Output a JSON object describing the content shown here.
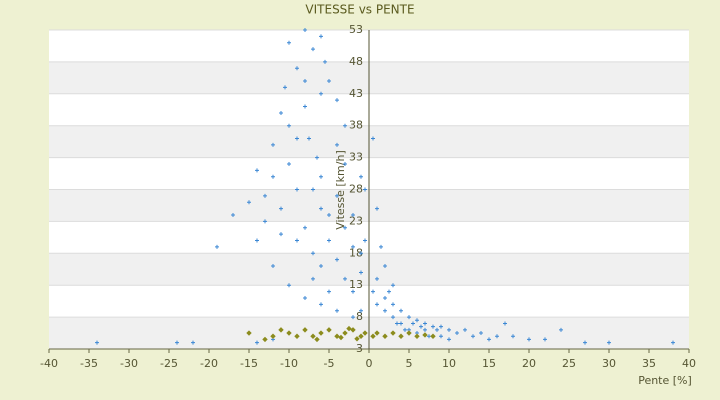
{
  "chart_data": {
    "type": "scatter",
    "title": "VITESSE vs PENTE",
    "x_label": "Pente [%]",
    "y_label": "Vitesse [km/h]",
    "xlim": [
      -40,
      40
    ],
    "xticks": [
      -40,
      -35,
      -30,
      -25,
      -20,
      -15,
      -10,
      -5,
      0,
      5,
      10,
      15,
      20,
      25,
      30,
      35,
      40
    ],
    "ylim": [
      3,
      53
    ],
    "yticks": [
      3,
      8,
      13,
      18,
      23,
      28,
      33,
      38,
      43,
      48,
      53
    ],
    "grid": true,
    "series": [
      {
        "color": "#3b87d4",
        "x": [
          -12,
          -11,
          -10,
          -10.5,
          -9,
          -8,
          -7,
          -6,
          -5.5,
          -5,
          -4,
          -3,
          -8,
          -7.5,
          -6.5,
          -6,
          -9,
          -10,
          -11,
          -12,
          -13,
          -14,
          -8,
          -6,
          -5,
          -4,
          -3,
          -2,
          -1,
          -7,
          -9,
          -11,
          -13,
          -15,
          -17,
          -19,
          -7,
          -6,
          -5,
          -4,
          -3,
          -2,
          -1,
          -0.5,
          -8,
          -6,
          -4,
          -2,
          -1,
          -3,
          -5,
          -7,
          -9,
          -10,
          -8,
          -6,
          -4,
          -14,
          -12,
          -10,
          -2,
          -1,
          -0.5,
          0.5,
          1,
          1.5,
          2,
          2.5,
          3,
          3,
          4,
          4,
          5,
          5,
          6,
          6,
          7,
          7,
          8,
          8,
          9,
          9,
          10,
          10,
          11,
          12,
          13,
          14,
          15,
          16,
          17,
          18,
          20,
          22,
          24,
          27,
          30,
          38,
          1,
          2,
          3,
          2,
          1,
          0.5,
          3.5,
          4.5,
          5.5,
          6.5,
          7.5,
          8.5,
          -34,
          -24,
          -22,
          -14,
          -12
        ],
        "values": [
          35,
          40,
          51,
          44,
          47,
          53,
          50,
          52,
          48,
          45,
          42,
          38,
          41,
          36,
          33,
          30,
          28,
          32,
          25,
          30,
          27,
          31,
          22,
          25,
          20,
          27,
          32,
          24,
          30,
          18,
          20,
          21,
          23,
          26,
          24,
          19,
          14,
          16,
          12,
          17,
          22,
          19,
          15,
          28,
          11,
          10,
          9,
          12,
          18,
          14,
          24,
          28,
          36,
          38,
          45,
          43,
          35,
          20,
          16,
          13,
          8,
          9,
          20,
          36,
          25,
          19,
          16,
          12,
          10,
          8,
          9,
          7,
          8,
          6,
          7.5,
          5.5,
          7,
          6,
          6.5,
          5,
          6.5,
          5,
          6,
          4.5,
          5.5,
          6,
          5,
          5.5,
          4.5,
          5,
          7,
          5,
          4.5,
          4.5,
          6,
          4,
          4,
          4,
          14,
          11,
          13,
          9,
          10,
          12,
          7,
          6,
          7,
          6.5,
          5,
          6,
          4,
          4,
          4,
          4,
          4.5
        ]
      },
      {
        "color": "#8c8c1e",
        "x": [
          -15,
          -12,
          -10,
          -9,
          -8,
          -7,
          -6,
          -5,
          -4,
          -3,
          -2,
          -1,
          -0.5,
          0.5,
          1,
          2,
          3,
          4,
          5,
          6,
          7,
          8,
          -13,
          -11,
          -6.5,
          -3.5,
          -2.5,
          -1.5
        ],
        "values": [
          5.5,
          5,
          5.5,
          5,
          6,
          5,
          5.5,
          6,
          5,
          5.5,
          6,
          5,
          5.5,
          5,
          5.5,
          5,
          5.5,
          5,
          5.5,
          5,
          5.2,
          5,
          4.5,
          6,
          4.5,
          4.8,
          6.2,
          4.6
        ]
      }
    ]
  }
}
